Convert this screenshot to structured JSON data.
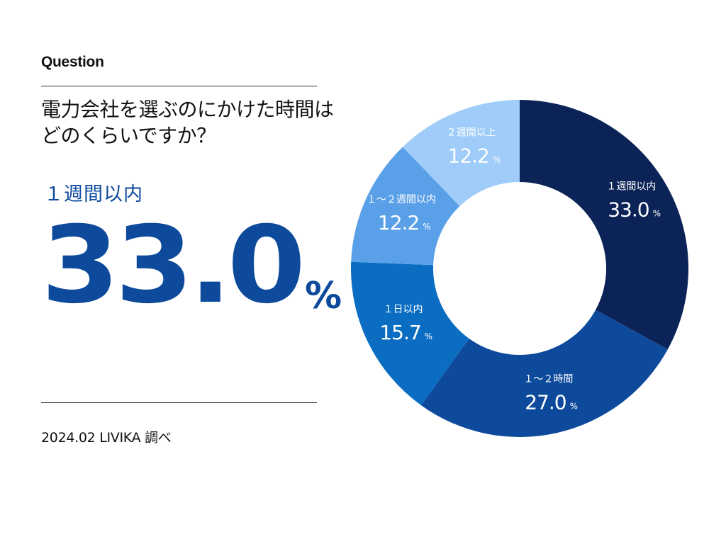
{
  "header": {
    "label": "Question",
    "question_line1": "電力会社を選ぶのにかけた時間は",
    "question_line2": "どのくらいですか？"
  },
  "highlight": {
    "label": "１週間以内",
    "value": "33.0",
    "unit": "%"
  },
  "footer": {
    "source": "2024.02 LIVIKA 調べ"
  },
  "chart_data": {
    "type": "pie",
    "style": "donut",
    "unit": "%",
    "series": [
      {
        "name": "１週間以内",
        "value": 33.0,
        "label": "33.0",
        "color": "#0b2357",
        "text_color": "#ffffff"
      },
      {
        "name": "１～２時間",
        "value": 27.0,
        "label": "27.0",
        "color": "#0d4a9c",
        "text_color": "#ffffff"
      },
      {
        "name": "１日以内",
        "value": 15.7,
        "label": "15.7",
        "color": "#0a6dc2",
        "text_color": "#ffffff"
      },
      {
        "name": "１～２週間以内",
        "value": 12.2,
        "label": "12.2",
        "color": "#5aa0e8",
        "text_color": "#ffffff"
      },
      {
        "name": "２週間以上",
        "value": 12.2,
        "label": "12.2",
        "color": "#9fccf8",
        "text_color": "#ffffff"
      }
    ]
  }
}
